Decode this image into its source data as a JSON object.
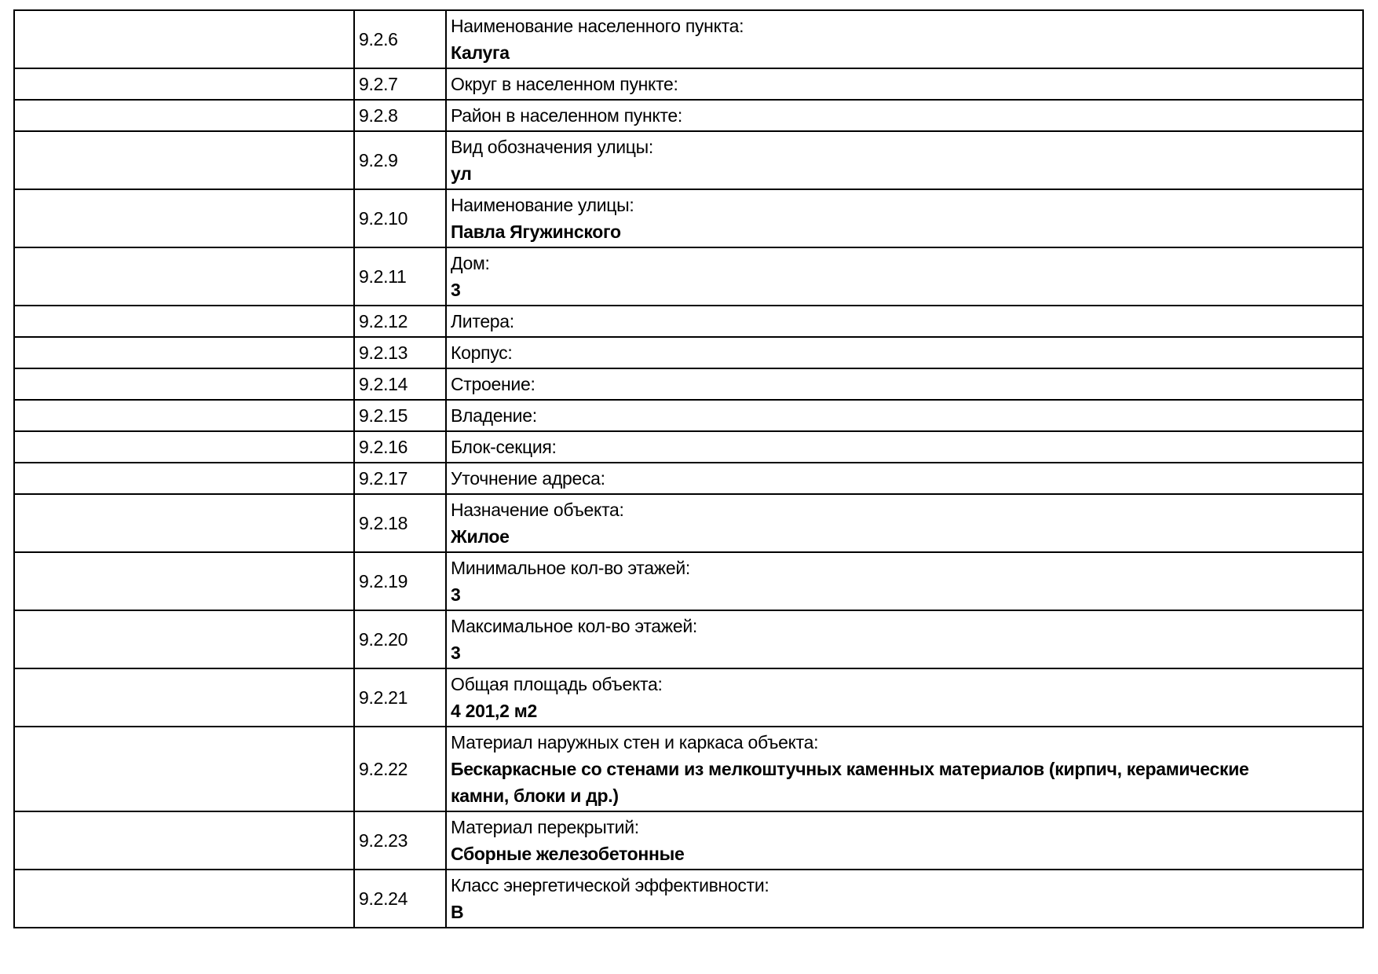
{
  "page": {
    "background_color": "#ffffff",
    "text_color": "#000000",
    "grid_color": "#000000"
  },
  "table": {
    "rows": [
      {
        "num": "9.2.6",
        "label": "Наименование населенного пункта:",
        "value": "Калуга"
      },
      {
        "num": "9.2.7",
        "label": "Округ в населенном пункте:",
        "value": ""
      },
      {
        "num": "9.2.8",
        "label": "Район в населенном пункте:",
        "value": ""
      },
      {
        "num": "9.2.9",
        "label": "Вид обозначения улицы:",
        "value": "ул"
      },
      {
        "num": "9.2.10",
        "label": "Наименование улицы:",
        "value": "Павла Ягужинского"
      },
      {
        "num": "9.2.11",
        "label": "Дом:",
        "value": "3"
      },
      {
        "num": "9.2.12",
        "label": "Литера:",
        "value": ""
      },
      {
        "num": "9.2.13",
        "label": "Корпус:",
        "value": ""
      },
      {
        "num": "9.2.14",
        "label": "Строение:",
        "value": ""
      },
      {
        "num": "9.2.15",
        "label": "Владение:",
        "value": ""
      },
      {
        "num": "9.2.16",
        "label": "Блок-секция:",
        "value": ""
      },
      {
        "num": "9.2.17",
        "label": "Уточнение адреса:",
        "value": ""
      },
      {
        "num": "9.2.18",
        "label": "Назначение объекта:",
        "value": "Жилое"
      },
      {
        "num": "9.2.19",
        "label": "Минимальное кол-во этажей:",
        "value": "3"
      },
      {
        "num": "9.2.20",
        "label": "Максимальное кол-во этажей:",
        "value": "3"
      },
      {
        "num": "9.2.21",
        "label": "Общая площадь объекта:",
        "value": "4 201,2 м2"
      },
      {
        "num": "9.2.22",
        "label": "Материал наружных стен и каркаса объекта:",
        "value": "Бескаркасные со стенами из мелкоштучных каменных материалов (кирпич, керамические камни, блоки и др.)"
      },
      {
        "num": "9.2.23",
        "label": "Материал перекрытий:",
        "value": "Сборные железобетонные"
      },
      {
        "num": "9.2.24",
        "label": "Класс энергетической эффективности:",
        "value": "В"
      }
    ]
  }
}
